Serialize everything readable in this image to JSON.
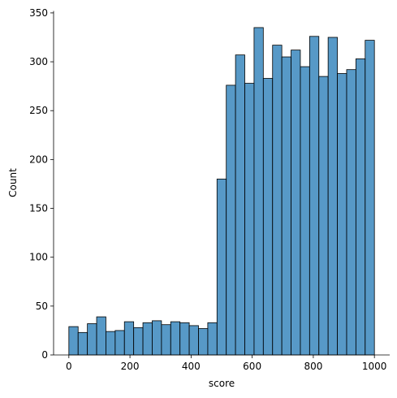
{
  "chart_data": {
    "type": "histogram",
    "xlabel": "score",
    "ylabel": "Count",
    "bins": [
      0,
      30.3,
      60.61,
      90.91,
      121.21,
      151.52,
      181.82,
      212.12,
      242.42,
      272.73,
      303.03,
      333.33,
      363.64,
      393.94,
      424.24,
      454.55,
      484.85,
      515.15,
      545.45,
      575.76,
      606.06,
      636.36,
      666.67,
      696.97,
      727.27,
      757.58,
      787.88,
      818.18,
      848.48,
      878.79,
      909.09,
      939.39,
      969.7,
      1000
    ],
    "values": [
      29,
      23,
      32,
      39,
      24,
      25,
      34,
      28,
      33,
      35,
      31,
      34,
      33,
      30,
      27,
      33,
      180,
      276,
      307,
      278,
      335,
      283,
      317,
      305,
      312,
      295,
      326,
      285,
      325,
      288,
      292,
      303,
      322
    ],
    "color": "#1f77b4",
    "xlim": [
      -50,
      1050
    ],
    "xticks": [
      0,
      200,
      400,
      600,
      800,
      1000
    ],
    "ylim": [
      0,
      352
    ],
    "yticks": [
      0,
      50,
      100,
      150,
      200,
      250,
      300,
      350
    ]
  }
}
